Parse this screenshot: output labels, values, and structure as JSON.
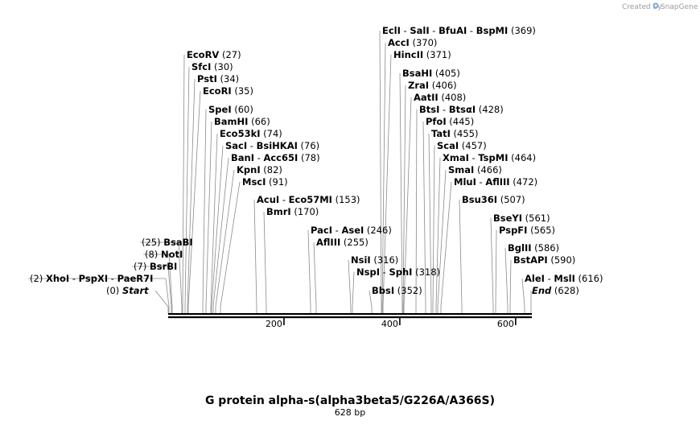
{
  "header": {
    "credit": "Created by",
    "brand": "SnapGene"
  },
  "map": {
    "title": "G protein alpha-s(alpha3beta5/G226A/A366S)",
    "length_label": "628 bp",
    "length": 628,
    "start_label": "Start",
    "start_pos": "(0)",
    "end_label": "End",
    "end_pos": "(628)",
    "ticks": [
      "200",
      "400",
      "600"
    ]
  },
  "sites": [
    {
      "enzymes": [
        "XhoI",
        "PspXI",
        "PaeR7I"
      ],
      "pos": "(2)",
      "bp": 2
    },
    {
      "enzymes": [
        "BsrBI"
      ],
      "pos": "(7)",
      "bp": 7
    },
    {
      "enzymes": [
        "NotI"
      ],
      "pos": "(8)",
      "bp": 8
    },
    {
      "enzymes": [
        "BsaBI"
      ],
      "pos": "(25)",
      "bp": 25
    },
    {
      "enzymes": [
        "EcoRV"
      ],
      "pos": "(27)",
      "bp": 27
    },
    {
      "enzymes": [
        "SfcI"
      ],
      "pos": "(30)",
      "bp": 30
    },
    {
      "enzymes": [
        "PstI"
      ],
      "pos": "(34)",
      "bp": 34
    },
    {
      "enzymes": [
        "EcoRI"
      ],
      "pos": "(35)",
      "bp": 35
    },
    {
      "enzymes": [
        "SpeI"
      ],
      "pos": "(60)",
      "bp": 60
    },
    {
      "enzymes": [
        "BamHI"
      ],
      "pos": "(66)",
      "bp": 66
    },
    {
      "enzymes": [
        "Eco53kI"
      ],
      "pos": "(74)",
      "bp": 74
    },
    {
      "enzymes": [
        "SacI",
        "BsiHKAI"
      ],
      "pos": "(76)",
      "bp": 76
    },
    {
      "enzymes": [
        "BanI",
        "Acc65I"
      ],
      "pos": "(78)",
      "bp": 78
    },
    {
      "enzymes": [
        "KpnI"
      ],
      "pos": "(82)",
      "bp": 82
    },
    {
      "enzymes": [
        "MscI"
      ],
      "pos": "(91)",
      "bp": 91
    },
    {
      "enzymes": [
        "AcuI",
        "Eco57MI"
      ],
      "pos": "(153)",
      "bp": 153
    },
    {
      "enzymes": [
        "BmrI"
      ],
      "pos": "(170)",
      "bp": 170
    },
    {
      "enzymes": [
        "PacI",
        "AseI"
      ],
      "pos": "(246)",
      "bp": 246
    },
    {
      "enzymes": [
        "AflIII"
      ],
      "pos": "(255)",
      "bp": 255
    },
    {
      "enzymes": [
        "NsiI"
      ],
      "pos": "(316)",
      "bp": 316
    },
    {
      "enzymes": [
        "NspI",
        "SphI"
      ],
      "pos": "(318)",
      "bp": 318
    },
    {
      "enzymes": [
        "BbsI"
      ],
      "pos": "(352)",
      "bp": 352
    },
    {
      "enzymes": [
        "EclI",
        "SalI",
        "BfuAI",
        "BspMI"
      ],
      "pos": "(369)",
      "bp": 369
    },
    {
      "enzymes": [
        "AccI"
      ],
      "pos": "(370)",
      "bp": 370
    },
    {
      "enzymes": [
        "HincII"
      ],
      "pos": "(371)",
      "bp": 371
    },
    {
      "enzymes": [
        "BsaHI"
      ],
      "pos": "(405)",
      "bp": 405
    },
    {
      "enzymes": [
        "ZraI"
      ],
      "pos": "(406)",
      "bp": 406
    },
    {
      "enzymes": [
        "AatII"
      ],
      "pos": "(408)",
      "bp": 408
    },
    {
      "enzymes": [
        "BtsI",
        "BtsαI"
      ],
      "pos": "(428)",
      "bp": 428
    },
    {
      "enzymes": [
        "PfoI"
      ],
      "pos": "(445)",
      "bp": 445
    },
    {
      "enzymes": [
        "TatI"
      ],
      "pos": "(455)",
      "bp": 455
    },
    {
      "enzymes": [
        "ScaI"
      ],
      "pos": "(457)",
      "bp": 457
    },
    {
      "enzymes": [
        "XmaI",
        "TspMI"
      ],
      "pos": "(464)",
      "bp": 464
    },
    {
      "enzymes": [
        "SmaI"
      ],
      "pos": "(466)",
      "bp": 466
    },
    {
      "enzymes": [
        "MluI",
        "AflIII"
      ],
      "pos": "(472)",
      "bp": 472
    },
    {
      "enzymes": [
        "Bsu36I"
      ],
      "pos": "(507)",
      "bp": 507
    },
    {
      "enzymes": [
        "BseYI"
      ],
      "pos": "(561)",
      "bp": 561
    },
    {
      "enzymes": [
        "PspFI"
      ],
      "pos": "(565)",
      "bp": 565
    },
    {
      "enzymes": [
        "BglII"
      ],
      "pos": "(586)",
      "bp": 586
    },
    {
      "enzymes": [
        "BstAPI"
      ],
      "pos": "(590)",
      "bp": 590
    },
    {
      "enzymes": [
        "AleI",
        "MslI"
      ],
      "pos": "(616)",
      "bp": 616
    }
  ]
}
